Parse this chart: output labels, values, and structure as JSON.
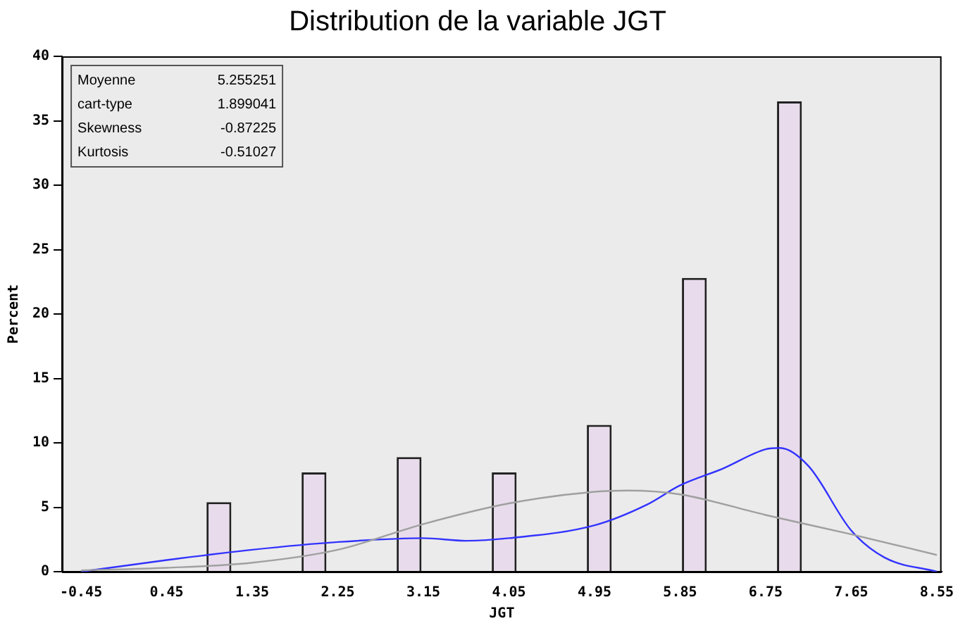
{
  "chart_data": {
    "type": "bar",
    "title": "Distribution de la variable JGT",
    "xlabel": "JGT",
    "ylabel": "Percent",
    "xlim": [
      -0.65,
      8.6
    ],
    "xticks": [
      -0.45,
      0.45,
      1.35,
      2.25,
      3.15,
      4.05,
      4.95,
      5.85,
      6.75,
      7.65,
      8.55
    ],
    "ylim": [
      0,
      40
    ],
    "yticks": [
      0,
      5,
      10,
      15,
      20,
      25,
      30,
      35,
      40
    ],
    "grid": false,
    "legend": false,
    "series": [
      {
        "color": "#e8dcec",
        "x": [
          1,
          2,
          3,
          4,
          5,
          6,
          7
        ],
        "values": [
          5.4,
          7.7,
          8.9,
          7.7,
          11.4,
          22.8,
          36.5
        ]
      },
      {
        "type": "line",
        "color": "#a0a0a0",
        "x": [
          -0.45,
          0.45,
          1.35,
          2.25,
          3.15,
          4.05,
          4.95,
          5.3,
          5.85,
          6.75,
          7.65,
          8.55
        ],
        "values": [
          0.1,
          0.3,
          0.7,
          1.7,
          3.7,
          5.3,
          6.2,
          6.3,
          6.0,
          4.4,
          2.9,
          1.3
        ]
      },
      {
        "type": "line",
        "color": "#3333ff",
        "x": [
          -0.45,
          0.45,
          1.35,
          2.25,
          3.15,
          3.6,
          4.05,
          4.95,
          5.5,
          5.85,
          6.3,
          6.75,
          6.9,
          7.2,
          7.65,
          8.0,
          8.55
        ],
        "values": [
          0,
          0.9,
          1.7,
          2.3,
          2.6,
          2.4,
          2.6,
          3.6,
          5.2,
          6.7,
          8.0,
          9.5,
          9.6,
          8.2,
          3.2,
          1.1,
          0
        ]
      }
    ],
    "annotations": [
      "Moyenne 5.255251",
      "cart-type 1.899041",
      "Skewness -0.87225",
      "Kurtosis -0.51027"
    ]
  }
}
